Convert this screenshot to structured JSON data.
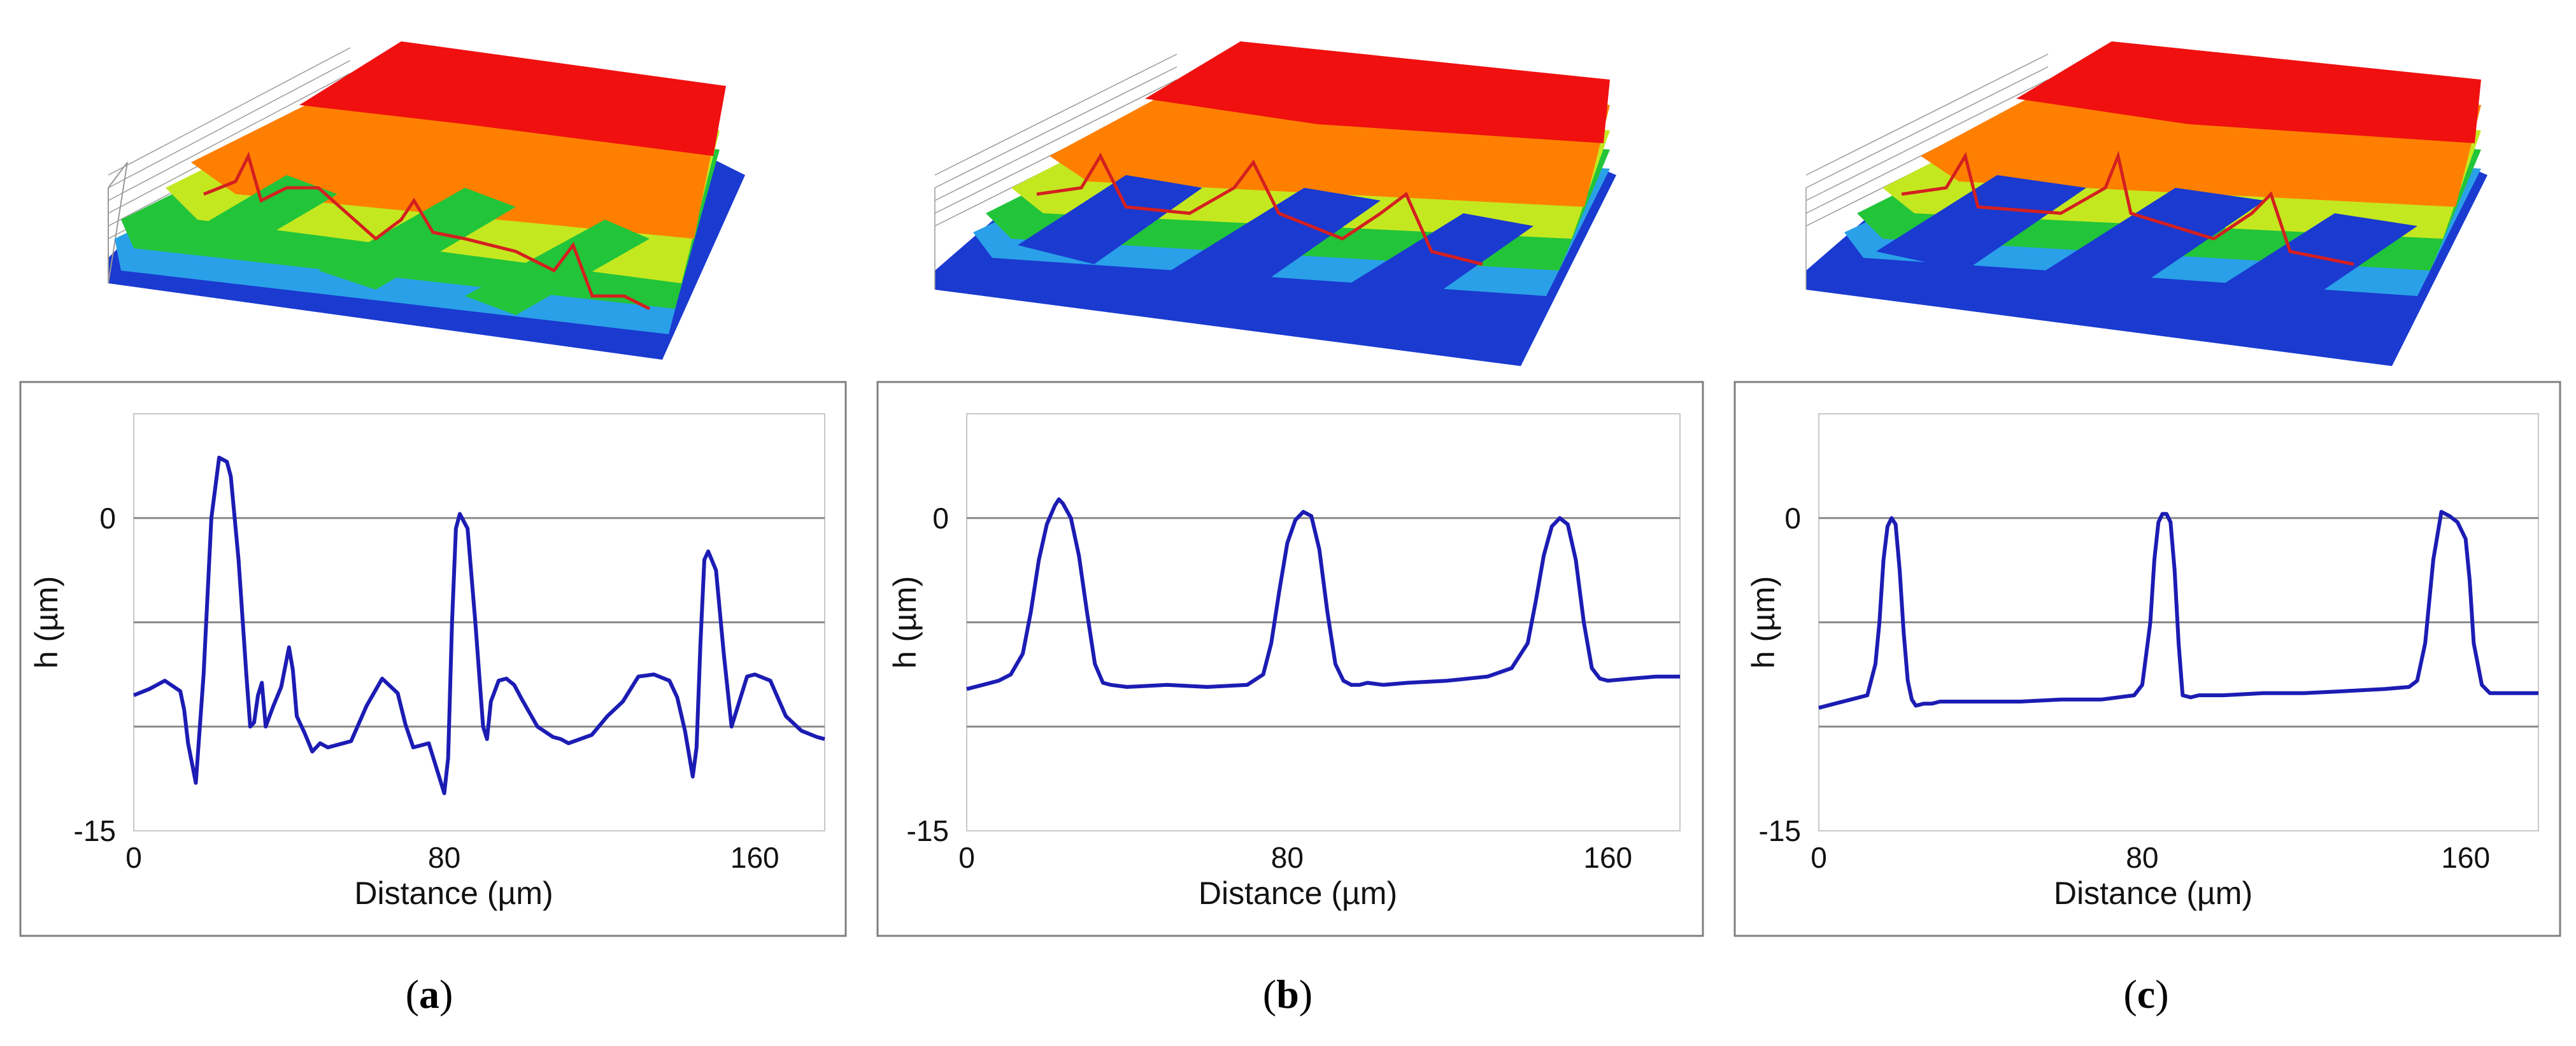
{
  "figure": {
    "captions": [
      "a",
      "b",
      "c"
    ],
    "colors": {
      "line": "#1c1cb4",
      "profile_trace": "#d42020",
      "gridline": "#8a8a8a",
      "frame": "#7f7f7f",
      "surface_scale": [
        "#1a3ad0",
        "#2aa0e8",
        "#22c43a",
        "#c4e820",
        "#ffd400",
        "#ff8000",
        "#f01010"
      ]
    }
  },
  "chart_data": [
    {
      "type": "line",
      "panel": "a",
      "title": "",
      "xlabel": "Distance (µm)",
      "ylabel": "h (µm)",
      "xlim": [
        0,
        178
      ],
      "ylim": [
        -15,
        5
      ],
      "xticks": [
        0,
        80,
        160
      ],
      "yticks": [
        0,
        -15
      ],
      "grid_y": [
        0,
        -5,
        -10
      ],
      "series": [
        {
          "name": "profile",
          "x": [
            0,
            4,
            8,
            12,
            13,
            14,
            16,
            18,
            20,
            22,
            24,
            25,
            27,
            29,
            30,
            31,
            32,
            33,
            34,
            36,
            38,
            40,
            41,
            42,
            44,
            46,
            48,
            50,
            56,
            60,
            64,
            68,
            70,
            72,
            76,
            80,
            81,
            82,
            83,
            84,
            86,
            88,
            90,
            91,
            92,
            94,
            96,
            98,
            100,
            104,
            108,
            110,
            112,
            118,
            122,
            126,
            130,
            134,
            138,
            140,
            142,
            144,
            145,
            146,
            147,
            148,
            150,
            152,
            154,
            156,
            158,
            160,
            164,
            168,
            172,
            176,
            178
          ],
          "y": [
            -8.5,
            -8.2,
            -7.8,
            -8.3,
            -9.2,
            -10.8,
            -12.7,
            -7.5,
            0,
            2.9,
            2.7,
            2,
            -2,
            -7.5,
            -10,
            -9.8,
            -8.5,
            -7.9,
            -10,
            -9,
            -8.1,
            -6.2,
            -7.3,
            -9.5,
            -10.3,
            -11.2,
            -10.8,
            -11,
            -10.7,
            -9,
            -7.7,
            -8.4,
            -9.9,
            -11,
            -10.8,
            -13.2,
            -11.5,
            -5,
            -0.5,
            0.2,
            -0.5,
            -5,
            -10,
            -10.6,
            -8.8,
            -7.8,
            -7.7,
            -8,
            -8.7,
            -10,
            -10.5,
            -10.6,
            -10.8,
            -10.4,
            -9.5,
            -8.8,
            -7.6,
            -7.5,
            -7.8,
            -8.6,
            -10.2,
            -12.4,
            -11,
            -6,
            -2,
            -1.6,
            -2.5,
            -6.5,
            -10,
            -8.8,
            -7.6,
            -7.5,
            -7.8,
            -9.5,
            -10.2,
            -10.5,
            -10.6
          ]
        }
      ]
    },
    {
      "type": "line",
      "panel": "b",
      "title": "",
      "xlabel": "Distance (µm)",
      "ylabel": "h (µm)",
      "xlim": [
        0,
        178
      ],
      "ylim": [
        -15,
        5
      ],
      "xticks": [
        0,
        80,
        160
      ],
      "yticks": [
        0,
        -15
      ],
      "grid_y": [
        0,
        -5,
        -10
      ],
      "series": [
        {
          "name": "profile",
          "x": [
            0,
            4,
            8,
            11,
            14,
            16,
            18,
            20,
            22,
            23,
            24,
            26,
            28,
            30,
            32,
            34,
            36,
            40,
            50,
            60,
            70,
            74,
            76,
            78,
            80,
            82,
            84,
            86,
            88,
            90,
            92,
            94,
            96,
            98,
            100,
            104,
            110,
            120,
            130,
            136,
            140,
            142,
            144,
            146,
            148,
            150,
            152,
            154,
            156,
            158,
            160,
            166,
            172,
            178
          ],
          "y": [
            -8.2,
            -8,
            -7.8,
            -7.5,
            -6.5,
            -4.5,
            -2,
            -0.3,
            0.6,
            0.9,
            0.7,
            0,
            -1.8,
            -4.5,
            -7,
            -7.9,
            -8,
            -8.1,
            -8,
            -8.1,
            -8,
            -7.5,
            -6,
            -3.5,
            -1.2,
            -0.1,
            0.3,
            0.1,
            -1.5,
            -4.5,
            -7,
            -7.8,
            -8,
            -8,
            -7.9,
            -8,
            -7.9,
            -7.8,
            -7.6,
            -7.2,
            -6,
            -4,
            -1.8,
            -0.4,
            0,
            -0.3,
            -2,
            -5,
            -7.2,
            -7.7,
            -7.8,
            -7.7,
            -7.6,
            -7.6
          ]
        }
      ]
    },
    {
      "type": "line",
      "panel": "c",
      "title": "",
      "xlabel": "Distance (µm)",
      "ylabel": "h (µm)",
      "xlim": [
        0,
        178
      ],
      "ylim": [
        -15,
        5
      ],
      "xticks": [
        0,
        80,
        160
      ],
      "yticks": [
        0,
        -15
      ],
      "grid_y": [
        0,
        -5,
        -10
      ],
      "series": [
        {
          "name": "profile",
          "x": [
            0,
            4,
            8,
            12,
            14,
            15,
            16,
            17,
            18,
            19,
            20,
            21,
            22,
            23,
            24,
            26,
            28,
            30,
            40,
            50,
            60,
            70,
            78,
            80,
            82,
            83,
            84,
            85,
            86,
            87,
            88,
            89,
            90,
            92,
            94,
            100,
            110,
            120,
            130,
            140,
            146,
            148,
            150,
            152,
            154,
            156,
            158,
            160,
            161,
            162,
            164,
            166,
            170,
            178
          ],
          "y": [
            -9.1,
            -8.9,
            -8.7,
            -8.5,
            -7,
            -5,
            -2,
            -0.4,
            0,
            -0.3,
            -2.5,
            -5.5,
            -7.8,
            -8.7,
            -9,
            -8.9,
            -8.9,
            -8.8,
            -8.8,
            -8.8,
            -8.7,
            -8.7,
            -8.5,
            -8,
            -5,
            -2,
            -0.2,
            0.2,
            0.2,
            -0.2,
            -2.5,
            -6,
            -8.5,
            -8.6,
            -8.5,
            -8.5,
            -8.4,
            -8.4,
            -8.3,
            -8.2,
            -8.1,
            -7.8,
            -6,
            -2,
            0.3,
            0.1,
            -0.2,
            -1,
            -3,
            -6,
            -8,
            -8.4,
            -8.4,
            -8.4
          ]
        }
      ]
    }
  ]
}
